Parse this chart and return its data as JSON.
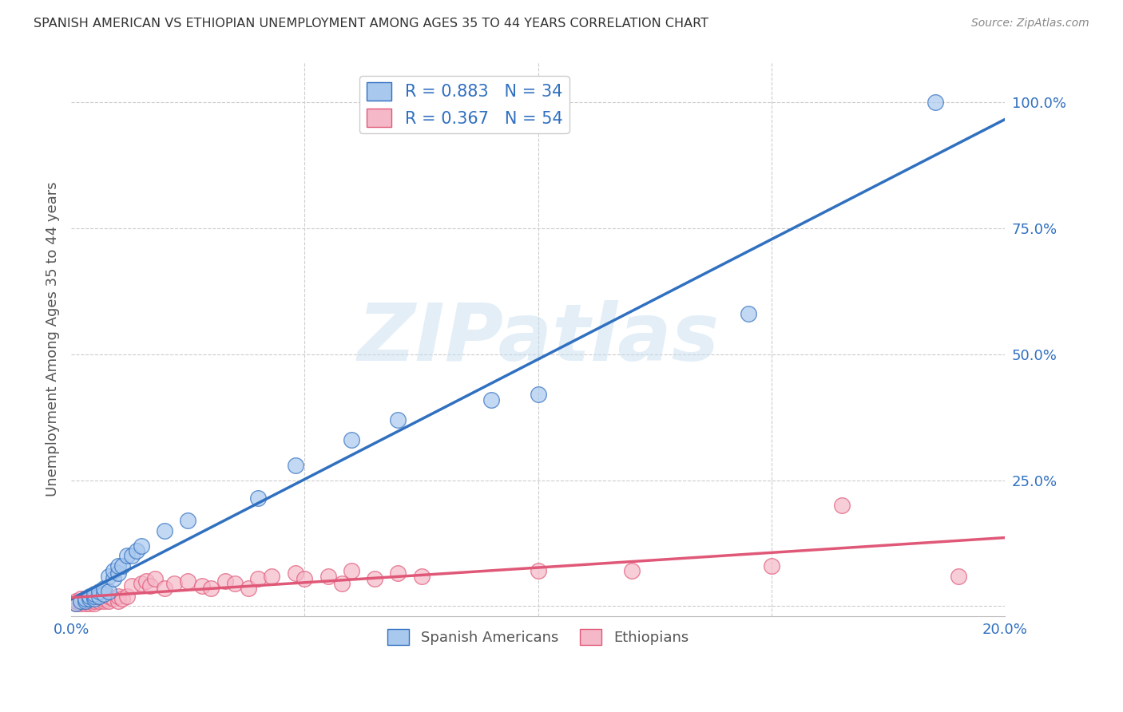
{
  "title": "SPANISH AMERICAN VS ETHIOPIAN UNEMPLOYMENT AMONG AGES 35 TO 44 YEARS CORRELATION CHART",
  "source": "Source: ZipAtlas.com",
  "ylabel": "Unemployment Among Ages 35 to 44 years",
  "ytick_labels": [
    "",
    "25.0%",
    "50.0%",
    "75.0%",
    "100.0%"
  ],
  "yticks": [
    0.0,
    0.25,
    0.5,
    0.75,
    1.0
  ],
  "xlim": [
    0.0,
    0.2
  ],
  "ylim": [
    -0.02,
    1.08
  ],
  "watermark": "ZIPatlas",
  "spanish_R": 0.883,
  "spanish_N": 34,
  "ethiopian_R": 0.367,
  "ethiopian_N": 54,
  "spanish_color": "#A8C8EE",
  "ethiopian_color": "#F5B8C8",
  "spanish_line_color": "#3070C0",
  "ethiopian_line_color": "#E05878",
  "spanish_x": [
    0.001,
    0.002,
    0.003,
    0.003,
    0.004,
    0.004,
    0.005,
    0.005,
    0.005,
    0.006,
    0.006,
    0.007,
    0.007,
    0.008,
    0.008,
    0.009,
    0.009,
    0.01,
    0.01,
    0.011,
    0.012,
    0.013,
    0.014,
    0.015,
    0.02,
    0.025,
    0.04,
    0.048,
    0.06,
    0.07,
    0.09,
    0.1,
    0.145,
    0.185
  ],
  "spanish_y": [
    0.005,
    0.01,
    0.01,
    0.015,
    0.015,
    0.02,
    0.015,
    0.02,
    0.025,
    0.02,
    0.03,
    0.025,
    0.035,
    0.03,
    0.06,
    0.055,
    0.07,
    0.065,
    0.08,
    0.08,
    0.1,
    0.1,
    0.11,
    0.12,
    0.15,
    0.17,
    0.215,
    0.28,
    0.33,
    0.37,
    0.41,
    0.42,
    0.58,
    1.0
  ],
  "ethiopian_x": [
    0.001,
    0.001,
    0.002,
    0.002,
    0.002,
    0.003,
    0.003,
    0.003,
    0.004,
    0.004,
    0.004,
    0.005,
    0.005,
    0.005,
    0.006,
    0.006,
    0.007,
    0.007,
    0.007,
    0.008,
    0.008,
    0.009,
    0.01,
    0.01,
    0.011,
    0.012,
    0.013,
    0.015,
    0.016,
    0.017,
    0.018,
    0.02,
    0.022,
    0.025,
    0.028,
    0.03,
    0.033,
    0.035,
    0.038,
    0.04,
    0.043,
    0.048,
    0.05,
    0.055,
    0.058,
    0.06,
    0.065,
    0.07,
    0.075,
    0.1,
    0.12,
    0.15,
    0.165,
    0.19
  ],
  "ethiopian_y": [
    0.005,
    0.01,
    0.005,
    0.01,
    0.015,
    0.005,
    0.01,
    0.015,
    0.005,
    0.01,
    0.015,
    0.005,
    0.01,
    0.02,
    0.01,
    0.02,
    0.01,
    0.015,
    0.025,
    0.01,
    0.02,
    0.015,
    0.01,
    0.02,
    0.015,
    0.02,
    0.04,
    0.045,
    0.05,
    0.04,
    0.055,
    0.035,
    0.045,
    0.05,
    0.04,
    0.035,
    0.05,
    0.045,
    0.035,
    0.055,
    0.06,
    0.065,
    0.055,
    0.06,
    0.045,
    0.07,
    0.055,
    0.065,
    0.06,
    0.07,
    0.07,
    0.08,
    0.2,
    0.06
  ],
  "legend_label_spanish": "Spanish Americans",
  "legend_label_ethiopian": "Ethiopians",
  "background_color": "#FFFFFF",
  "grid_color": "#CCCCCC",
  "title_color": "#333333",
  "axis_label_color": "#555555",
  "tick_label_color": "#3070C0",
  "source_color": "#888888"
}
